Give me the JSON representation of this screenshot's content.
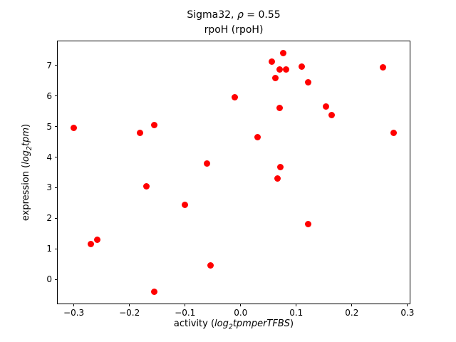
{
  "title": {
    "line1_prefix": "Sigma32, ",
    "line1_rho": "ρ",
    "line1_suffix": " = 0.55",
    "line2": "rpoH (rpoH)"
  },
  "axis_labels": {
    "x": {
      "prefix": "activity (",
      "log": "log",
      "sub": "2",
      "rest": "tpmperTFBS",
      "suffix": ")"
    },
    "y": {
      "prefix": "expression (",
      "log": "log",
      "sub": "2",
      "rest": "tpm",
      "suffix": ")"
    }
  },
  "chart_data": {
    "type": "scatter",
    "title": "Sigma32, ρ = 0.55",
    "subtitle": "rpoH (rpoH)",
    "xlabel": "activity (log2tpmperTFBS)",
    "ylabel": "expression (log2tpm)",
    "grid": false,
    "legend": false,
    "marker_color": "#ff0000",
    "marker_diameter_px": 9,
    "xlim": [
      -0.329,
      0.304
    ],
    "ylim": [
      -0.79,
      7.79
    ],
    "xtick_values": [
      -0.3,
      -0.2,
      -0.1,
      0.0,
      0.1,
      0.2,
      0.3
    ],
    "xtick_labels": [
      "−0.3",
      "−0.2",
      "−0.1",
      "0.0",
      "0.1",
      "0.2",
      "0.3"
    ],
    "ytick_values": [
      0,
      1,
      2,
      3,
      4,
      5,
      6,
      7
    ],
    "ytick_labels": [
      "0",
      "1",
      "2",
      "3",
      "4",
      "5",
      "6",
      "7"
    ],
    "points": [
      [
        -0.3,
        4.95
      ],
      [
        -0.27,
        1.15
      ],
      [
        -0.258,
        1.3
      ],
      [
        -0.181,
        4.8
      ],
      [
        -0.17,
        3.05
      ],
      [
        -0.156,
        5.05
      ],
      [
        -0.156,
        -0.4
      ],
      [
        -0.1,
        2.45
      ],
      [
        -0.06,
        3.8
      ],
      [
        -0.054,
        0.45
      ],
      [
        -0.01,
        5.95
      ],
      [
        0.03,
        4.65
      ],
      [
        0.056,
        7.12
      ],
      [
        0.062,
        6.58
      ],
      [
        0.066,
        3.3
      ],
      [
        0.071,
        3.67
      ],
      [
        0.07,
        6.88
      ],
      [
        0.077,
        7.4
      ],
      [
        0.082,
        6.88
      ],
      [
        0.07,
        5.6
      ],
      [
        0.11,
        6.97
      ],
      [
        0.122,
        6.45
      ],
      [
        0.121,
        1.8
      ],
      [
        0.154,
        5.65
      ],
      [
        0.164,
        5.37
      ],
      [
        0.256,
        6.95
      ],
      [
        0.275,
        4.8
      ]
    ]
  }
}
